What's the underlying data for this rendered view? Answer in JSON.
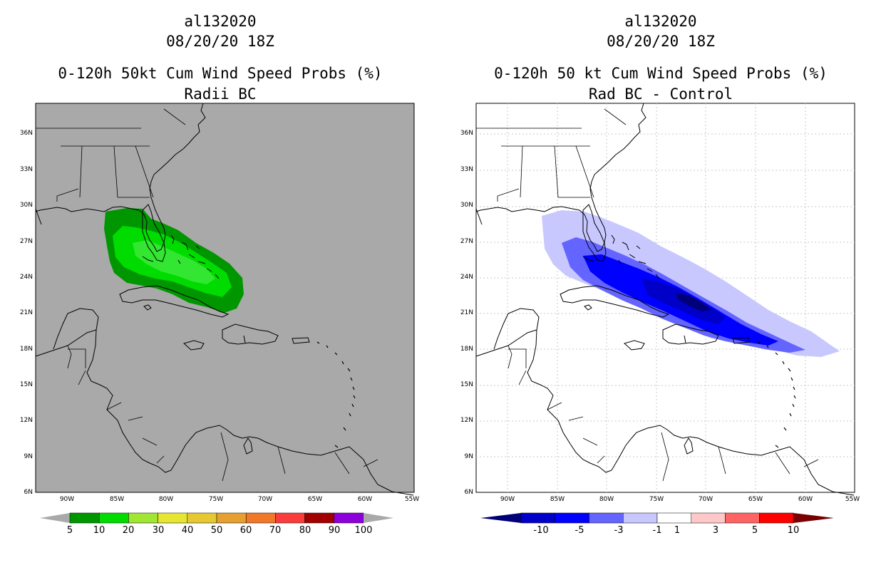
{
  "left_panel": {
    "title_lines": [
      "al132020",
      "08/20/20 18Z",
      "0-120h 50kt Cum Wind Speed Probs (%)",
      "Radii BC"
    ],
    "background": "#a9a9a9",
    "lat_labels": [
      "36N",
      "33N",
      "30N",
      "27N",
      "24N",
      "21N",
      "18N",
      "15N",
      "12N",
      "9N",
      "6N"
    ],
    "lon_labels": [
      "90W",
      "85W",
      "80W",
      "75W",
      "70W",
      "65W",
      "60W",
      "55W"
    ],
    "colorbar": {
      "colors": [
        "#009600",
        "#00dc00",
        "#a0e632",
        "#e6e632",
        "#e6c832",
        "#e6a032",
        "#f07828",
        "#fa3c3c",
        "#a00000",
        "#8c00dc"
      ],
      "labels": [
        "5",
        "10",
        "20",
        "30",
        "40",
        "50",
        "60",
        "70",
        "80",
        "90",
        "100"
      ],
      "end_color": "#a9a9a9"
    }
  },
  "right_panel": {
    "title_lines": [
      "al132020",
      "08/20/20 18Z",
      "0-120h 50 kt Cum Wind Speed Probs (%)",
      "Rad BC - Control"
    ],
    "background": "#ffffff",
    "lat_labels": [
      "36N",
      "33N",
      "30N",
      "27N",
      "24N",
      "21N",
      "18N",
      "15N",
      "12N",
      "9N",
      "6N"
    ],
    "lon_labels": [
      "90W",
      "85W",
      "80W",
      "75W",
      "70W",
      "65W",
      "60W",
      "55W"
    ],
    "colorbar": {
      "colors": [
        "#0000c8",
        "#0000ff",
        "#6464ff",
        "#c8c8ff",
        "#ffffff",
        "#ffc8c8",
        "#ff6464",
        "#ff0000"
      ],
      "labels": [
        "-10",
        "-5",
        "-3",
        "-1",
        "1",
        "3",
        "5",
        "10"
      ],
      "end_left": "#000078",
      "end_right": "#780000"
    }
  },
  "colors": {
    "green_dark": "#009600",
    "green_mid": "#00dc00",
    "green_light": "#32e632",
    "blue_pale": "#c8c8ff",
    "blue_mid": "#6464ff",
    "blue": "#0000ff",
    "blue_dark": "#0000c8",
    "navy": "#000078"
  }
}
